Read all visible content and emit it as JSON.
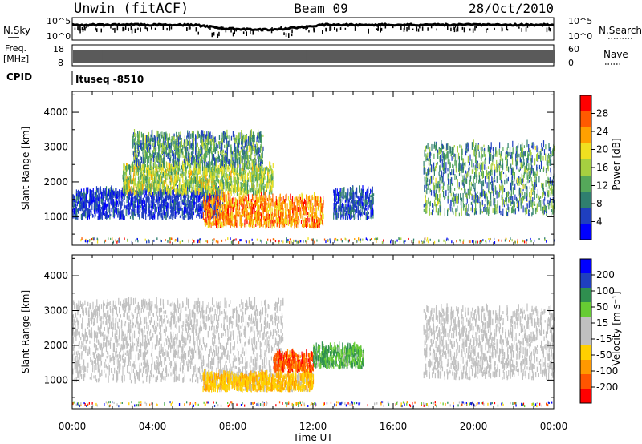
{
  "header": {
    "station": "Unwin (fitACF)",
    "beam": "Beam 09",
    "date": "28/Oct/2010"
  },
  "aux_panels": {
    "noise": {
      "left_label": "N.Sky",
      "right_label": "N.Search",
      "left_ticks": [
        "10^5",
        "10^0"
      ],
      "right_ticks": [
        "10^5",
        "10^0"
      ]
    },
    "freq": {
      "left_label_1": "Freq.",
      "left_label_2": "[MHz]",
      "right_label": "Nave",
      "left_ticks": [
        "18",
        "8"
      ],
      "right_ticks": [
        "60",
        "0"
      ]
    },
    "cpid": {
      "label": "CPID",
      "value": "Ituseq -8510"
    }
  },
  "colors": {
    "power_scale": [
      "#0000ff",
      "#1f3fbf",
      "#2f7f6f",
      "#55a85a",
      "#a6d040",
      "#f0e020",
      "#ffa000",
      "#ff5a00",
      "#ff0000"
    ],
    "velocity_scale": [
      "#0000ff",
      "#1f3fbf",
      "#2f8f4f",
      "#66cc33",
      "#c0c0c0",
      "#c0c0c0",
      "#ffd000",
      "#ff9900",
      "#ff5500",
      "#ff0000"
    ],
    "ground_scatter": "#a0a0a0"
  },
  "chart_data": [
    {
      "type": "heatmap",
      "name": "power",
      "ylabel": "Slant Range [km]",
      "colorbar_label": "Power [dB]",
      "colorbar_ticks": [
        "28",
        "24",
        "20",
        "16",
        "12",
        "8",
        "4"
      ],
      "xlim": [
        0,
        24
      ],
      "ylim": [
        180,
        4600
      ],
      "y_ticks": [
        "1000",
        "2000",
        "3000",
        "4000"
      ],
      "y_tick_values": [
        1000,
        2000,
        3000,
        4000
      ],
      "x_ticks": [
        "00:00",
        "04:00",
        "08:00",
        "12:00",
        "16:00",
        "20:00",
        "00:00"
      ],
      "x_tick_values": [
        0,
        4,
        8,
        12,
        16,
        20,
        24
      ],
      "regions": [
        {
          "t0": 0.0,
          "t1": 7.5,
          "r0": 900,
          "r1": 1700,
          "value_range": [
            2,
            8
          ]
        },
        {
          "t0": 2.5,
          "t1": 10.0,
          "r0": 1600,
          "r1": 2400,
          "value_range": [
            10,
            22
          ]
        },
        {
          "t0": 3.0,
          "t1": 9.5,
          "r0": 2400,
          "r1": 3300,
          "value_range": [
            4,
            18
          ]
        },
        {
          "t0": 6.5,
          "t1": 12.5,
          "r0": 650,
          "r1": 1500,
          "value_range": [
            18,
            30
          ]
        },
        {
          "t0": 13.0,
          "t1": 15.0,
          "r0": 900,
          "r1": 1700,
          "value_range": [
            2,
            10
          ]
        },
        {
          "t0": 17.5,
          "t1": 24.0,
          "r0": 1000,
          "r1": 3000,
          "value_range": [
            4,
            18
          ]
        }
      ]
    },
    {
      "type": "heatmap",
      "name": "velocity",
      "ylabel": "Slant Range [km]",
      "xlabel": "Time UT",
      "colorbar_label": "Velocity [m s⁻¹]",
      "colorbar_ticks": [
        "200",
        "100",
        "50",
        "15",
        "-15",
        "-50",
        "-100",
        "-200"
      ],
      "xlim": [
        0,
        24
      ],
      "ylim": [
        180,
        4600
      ],
      "y_ticks": [
        "1000",
        "2000",
        "3000",
        "4000"
      ],
      "y_tick_values": [
        1000,
        2000,
        3000,
        4000
      ],
      "x_ticks": [
        "00:00",
        "04:00",
        "08:00",
        "12:00",
        "16:00",
        "20:00",
        "00:00"
      ],
      "x_tick_values": [
        0,
        4,
        8,
        12,
        16,
        20,
        24
      ],
      "regions": [
        {
          "t0": 0.0,
          "t1": 10.5,
          "r0": 900,
          "r1": 3200,
          "value_range": [
            -20,
            20
          ]
        },
        {
          "t0": 6.5,
          "t1": 12.0,
          "r0": 650,
          "r1": 1100,
          "value_range": [
            -120,
            -40
          ]
        },
        {
          "t0": 10.0,
          "t1": 12.0,
          "r0": 1200,
          "r1": 1700,
          "value_range": [
            -220,
            -120
          ]
        },
        {
          "t0": 12.0,
          "t1": 14.5,
          "r0": 1300,
          "r1": 1900,
          "value_range": [
            40,
            150
          ]
        },
        {
          "t0": 17.5,
          "t1": 24.0,
          "r0": 1000,
          "r1": 3000,
          "value_range": [
            -20,
            20
          ]
        }
      ]
    }
  ]
}
